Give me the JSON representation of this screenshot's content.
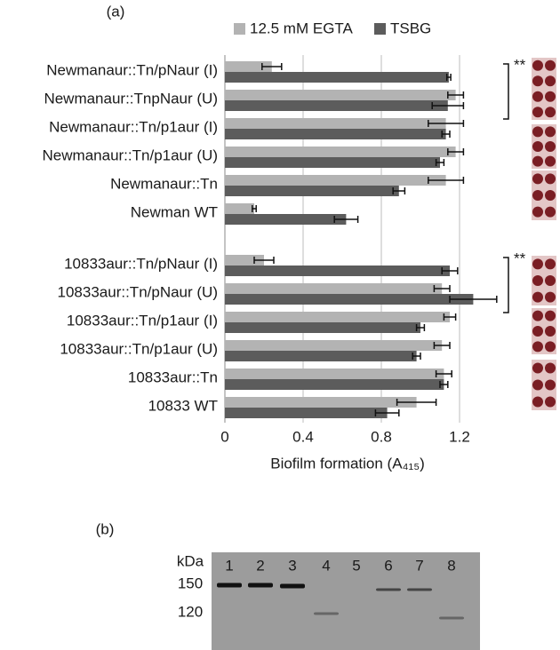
{
  "panel_labels": [
    "(a)",
    "(b)"
  ],
  "chart_data": {
    "type": "bar",
    "orientation": "horizontal",
    "x_label": "Biofilm formation (A₄₁₅)",
    "categories": [
      "Newmanaur::Tn/pNaur (I)",
      "Newmanaur::TnpNaur (U)",
      "Newmanaur::Tn/p1aur (I)",
      "Newmanaur::Tn/p1aur (U)",
      "Newmanaur::Tn",
      "Newman WT",
      null,
      "10833aur::Tn/pNaur (I)",
      "10833aur::Tn/pNaur (U)",
      "10833aur::Tn/p1aur (I)",
      "10833aur::Tn/p1aur (U)",
      "10833aur::Tn",
      "10833 WT"
    ],
    "series": [
      {
        "name": "12.5 mM EGTA",
        "color": "#b3b3b3",
        "values": [
          0.24,
          1.18,
          1.13,
          1.18,
          1.13,
          0.15,
          null,
          0.2,
          1.11,
          1.15,
          1.11,
          1.12,
          0.98
        ],
        "errors": [
          0.05,
          0.04,
          0.09,
          0.04,
          0.09,
          0.01,
          null,
          0.05,
          0.04,
          0.03,
          0.04,
          0.04,
          0.1
        ]
      },
      {
        "name": "TSBG",
        "color": "#5c5c5c",
        "values": [
          1.145,
          1.14,
          1.13,
          1.1,
          0.89,
          0.62,
          null,
          1.15,
          1.27,
          1.0,
          0.98,
          1.12,
          0.83
        ],
        "errors": [
          0.01,
          0.08,
          0.02,
          0.02,
          0.03,
          0.06,
          null,
          0.04,
          0.12,
          0.02,
          0.02,
          0.02,
          0.06
        ]
      }
    ],
    "xlim": [
      0,
      1.4
    ],
    "xticks": [
      0,
      0.4,
      0.8,
      1.2
    ],
    "grid": true,
    "annotations": [
      "**",
      "**"
    ]
  },
  "blot": {
    "unit_label": "kDa",
    "markers": [
      150,
      120
    ],
    "lanes": [
      1,
      2,
      3,
      4,
      5,
      6,
      7,
      8
    ]
  }
}
